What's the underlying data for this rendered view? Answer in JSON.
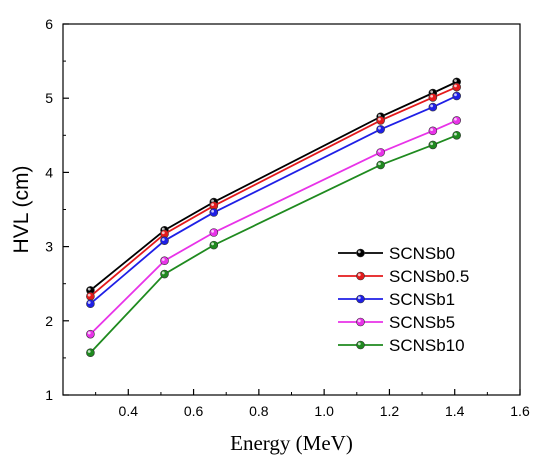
{
  "chart_data": {
    "type": "line",
    "title": "",
    "xlabel": "Energy (MeV)",
    "ylabel": "HVL (cm)",
    "xlim": [
      0.2,
      1.6
    ],
    "ylim": [
      1,
      6
    ],
    "xticks": [
      0.4,
      0.6,
      0.8,
      1.0,
      1.2,
      1.4,
      1.6
    ],
    "xtick_labels": [
      "0.4",
      "0.6",
      "0.8",
      "1.0",
      "1.2",
      "1.4",
      "1.6"
    ],
    "yticks": [
      1,
      2,
      3,
      4,
      5,
      6
    ],
    "ytick_labels": [
      "1",
      "2",
      "3",
      "4",
      "5",
      "6"
    ],
    "grid": false,
    "legend_position": "bottom-right",
    "x": [
      0.284,
      0.511,
      0.662,
      1.173,
      1.333,
      1.406
    ],
    "series": [
      {
        "name": "SCNSb0",
        "color": "#000000",
        "values": [
          2.41,
          3.22,
          3.6,
          4.75,
          5.07,
          5.22
        ]
      },
      {
        "name": "SCNSb0.5",
        "color": "#e41a1c",
        "values": [
          2.33,
          3.17,
          3.55,
          4.7,
          5.01,
          5.15
        ]
      },
      {
        "name": "SCNSb1",
        "color": "#1f1fe6",
        "values": [
          2.23,
          3.08,
          3.46,
          4.58,
          4.88,
          5.03
        ]
      },
      {
        "name": "SCNSb5",
        "color": "#e833e8",
        "values": [
          1.82,
          2.81,
          3.19,
          4.27,
          4.56,
          4.7
        ]
      },
      {
        "name": "SCNSb10",
        "color": "#1f8a1f",
        "values": [
          1.57,
          2.63,
          3.02,
          4.1,
          4.37,
          4.5
        ]
      }
    ]
  }
}
